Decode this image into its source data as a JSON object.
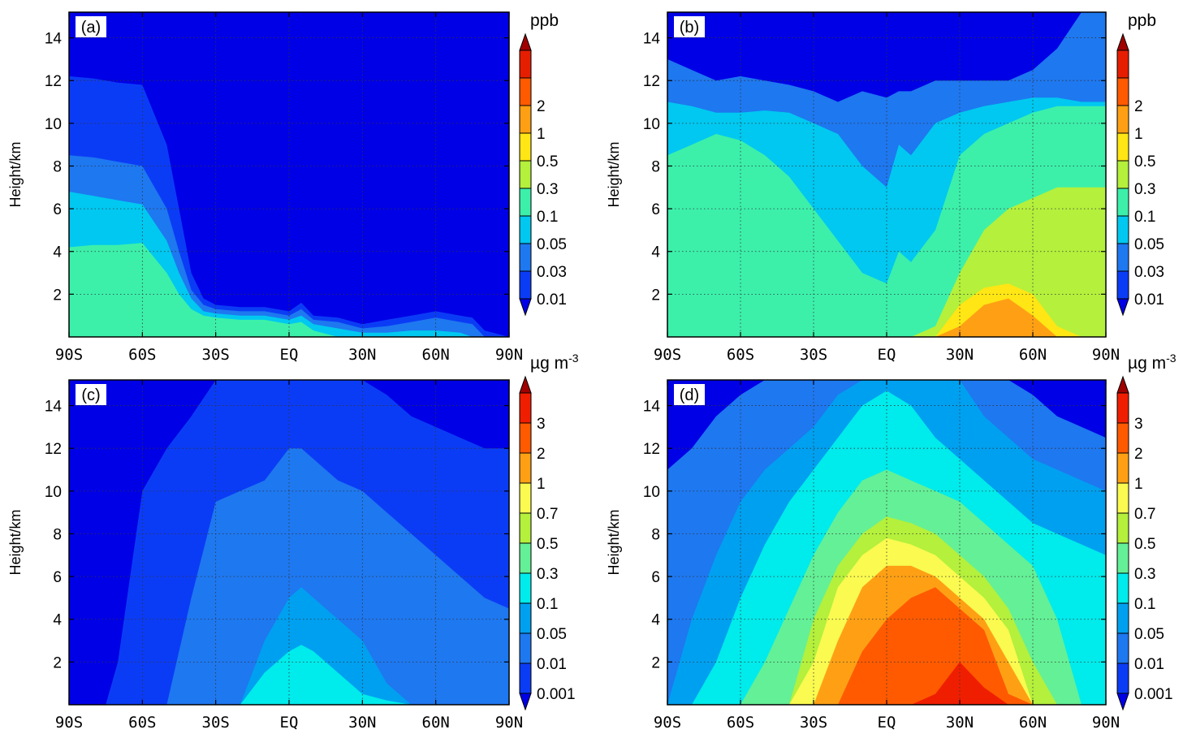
{
  "chart_data": [
    {
      "type": "heatmap",
      "panel_label": "(a)",
      "xlabel": "",
      "ylabel": "Height/km",
      "x_ticks": [
        "90S",
        "60S",
        "30S",
        "EQ",
        "30N",
        "60N",
        "90N"
      ],
      "y_ticks": [
        "2",
        "4",
        "6",
        "8",
        "10",
        "12",
        "14"
      ],
      "xlim": [
        -90,
        90
      ],
      "ylim": [
        0,
        15.2
      ],
      "grid": "dotted",
      "colorbar": {
        "unit": "ppb",
        "levels": [
          "0.01",
          "0.03",
          "0.05",
          "0.1",
          "0.3",
          "0.5",
          "1",
          "2"
        ],
        "colors": [
          "#0000e6",
          "#0b3cf5",
          "#1e78f0",
          "#00c8f0",
          "#3cf0aa",
          "#b4f03c",
          "#ffe614",
          "#ffa014",
          "#ff5a00",
          "#e61e00",
          "#a00000"
        ]
      },
      "contour_tops_km": {
        "x": [
          -90,
          -80,
          -70,
          -60,
          -50,
          -45,
          -40,
          -35,
          -30,
          -20,
          -10,
          0,
          5,
          10,
          20,
          30,
          40,
          50,
          60,
          70,
          75,
          80,
          90
        ],
        "0.01": [
          12.2,
          12.1,
          11.9,
          11.8,
          9.0,
          6.0,
          3.0,
          1.8,
          1.5,
          1.4,
          1.4,
          1.2,
          1.6,
          1.0,
          0.9,
          0.6,
          0.8,
          1.0,
          1.2,
          1.0,
          0.9,
          0.3,
          0.0
        ],
        "0.03": [
          8.5,
          8.4,
          8.2,
          8.0,
          6.0,
          4.0,
          2.2,
          1.5,
          1.3,
          1.2,
          1.2,
          1.0,
          1.3,
          0.8,
          0.7,
          0.4,
          0.5,
          0.7,
          0.9,
          0.7,
          0.6,
          0.0,
          0.0
        ],
        "0.05": [
          6.8,
          6.6,
          6.4,
          6.2,
          4.5,
          3.0,
          1.8,
          1.2,
          1.1,
          1.0,
          1.0,
          0.8,
          1.0,
          0.6,
          0.4,
          0.2,
          0.2,
          0.3,
          0.3,
          0.2,
          0.0,
          0.0,
          0.0
        ],
        "0.1": [
          4.2,
          4.3,
          4.3,
          4.4,
          3.0,
          2.0,
          1.3,
          1.0,
          0.9,
          0.8,
          0.8,
          0.6,
          0.7,
          0.3,
          0.0,
          0.0,
          0.0,
          0.0,
          0.0,
          0.0,
          0.0,
          0.0,
          0.0
        ]
      }
    },
    {
      "type": "heatmap",
      "panel_label": "(b)",
      "xlabel": "",
      "ylabel": "Height/km",
      "x_ticks": [
        "90S",
        "60S",
        "30S",
        "EQ",
        "30N",
        "60N",
        "90N"
      ],
      "y_ticks": [
        "2",
        "4",
        "6",
        "8",
        "10",
        "12",
        "14"
      ],
      "xlim": [
        -90,
        90
      ],
      "ylim": [
        0,
        15.2
      ],
      "grid": "dotted",
      "colorbar": {
        "unit": "ppb",
        "levels": [
          "0.01",
          "0.03",
          "0.05",
          "0.1",
          "0.3",
          "0.5",
          "1",
          "2"
        ],
        "colors": [
          "#0000e6",
          "#0b3cf5",
          "#1e78f0",
          "#00c8f0",
          "#3cf0aa",
          "#b4f03c",
          "#ffe614",
          "#ffa014",
          "#ff5a00",
          "#e61e00",
          "#a00000"
        ]
      },
      "contour_tops_km": {
        "x": [
          -90,
          -80,
          -70,
          -60,
          -50,
          -40,
          -30,
          -20,
          -10,
          0,
          5,
          10,
          20,
          30,
          40,
          50,
          60,
          70,
          80,
          90
        ],
        "0.03": [
          13.0,
          12.5,
          12.0,
          12.2,
          12.0,
          11.8,
          11.5,
          11.0,
          11.5,
          11.2,
          11.5,
          11.5,
          12.0,
          12.0,
          12.0,
          12.0,
          12.5,
          13.5,
          15.2,
          15.2
        ],
        "0.05": [
          11.0,
          10.8,
          10.5,
          10.5,
          10.6,
          10.5,
          10.0,
          9.5,
          8.0,
          7.0,
          9.0,
          8.5,
          10.0,
          10.5,
          10.8,
          11.0,
          11.2,
          11.2,
          11.0,
          11.0
        ],
        "0.1": [
          8.5,
          9.0,
          9.5,
          9.2,
          8.5,
          7.5,
          6.0,
          4.5,
          3.0,
          2.5,
          4.0,
          3.5,
          5.0,
          8.5,
          9.5,
          10.0,
          10.5,
          10.8,
          10.8,
          10.8
        ],
        "0.3": [
          0.0,
          0.0,
          0.0,
          0.0,
          0.0,
          0.0,
          0.0,
          0.0,
          0.0,
          0.0,
          0.0,
          0.0,
          0.5,
          3.0,
          5.0,
          6.0,
          6.5,
          7.0,
          7.0,
          7.0
        ],
        "0.5": [
          0.0,
          0.0,
          0.0,
          0.0,
          0.0,
          0.0,
          0.0,
          0.0,
          0.0,
          0.0,
          0.0,
          0.0,
          0.0,
          1.5,
          2.3,
          2.5,
          2.0,
          0.5,
          0.0,
          0.0
        ],
        "1": [
          0.0,
          0.0,
          0.0,
          0.0,
          0.0,
          0.0,
          0.0,
          0.0,
          0.0,
          0.0,
          0.0,
          0.0,
          0.0,
          0.5,
          1.5,
          1.8,
          1.0,
          0.0,
          0.0,
          0.0
        ]
      }
    },
    {
      "type": "heatmap",
      "panel_label": "(c)",
      "xlabel": "",
      "ylabel": "Height/km",
      "x_ticks": [
        "90S",
        "60S",
        "30S",
        "EQ",
        "30N",
        "60N",
        "90N"
      ],
      "y_ticks": [
        "2",
        "4",
        "6",
        "8",
        "10",
        "12",
        "14"
      ],
      "xlim": [
        -90,
        90
      ],
      "ylim": [
        0,
        15.2
      ],
      "grid": "dotted",
      "colorbar": {
        "unit": "µg m",
        "unit_superscript": "-3",
        "levels": [
          "0.001",
          "0.01",
          "0.05",
          "0.1",
          "0.3",
          "0.5",
          "0.7",
          "1",
          "2",
          "3"
        ],
        "colors": [
          "#0000e6",
          "#0b3cf5",
          "#1e78f0",
          "#00a0f0",
          "#00ebeb",
          "#64f096",
          "#b4f03c",
          "#fafa50",
          "#ffa014",
          "#ff5a00",
          "#f01e00",
          "#a00000"
        ]
      },
      "contour_tops_km": {
        "x": [
          -90,
          -80,
          -75,
          -70,
          -60,
          -50,
          -40,
          -30,
          -20,
          -10,
          0,
          5,
          10,
          20,
          30,
          40,
          50,
          60,
          70,
          80,
          90
        ],
        "0.001": [
          0.0,
          0.0,
          0.0,
          2.0,
          10.0,
          12.0,
          13.5,
          15.2,
          15.2,
          15.2,
          15.2,
          15.2,
          15.2,
          15.2,
          15.2,
          14.5,
          13.5,
          13.0,
          12.5,
          12.0,
          12.0
        ],
        "0.01": [
          0.0,
          0.0,
          0.0,
          0.0,
          0.0,
          0.0,
          5.0,
          9.5,
          10.0,
          10.5,
          12.0,
          12.0,
          11.5,
          10.5,
          10.0,
          9.0,
          8.0,
          7.0,
          6.0,
          5.0,
          4.5
        ],
        "0.05": [
          0.0,
          0.0,
          0.0,
          0.0,
          0.0,
          0.0,
          0.0,
          0.0,
          0.0,
          3.0,
          5.0,
          5.5,
          5.0,
          4.0,
          3.0,
          1.0,
          0.0,
          0.0,
          0.0,
          0.0,
          0.0
        ],
        "0.1": [
          0.0,
          0.0,
          0.0,
          0.0,
          0.0,
          0.0,
          0.0,
          0.0,
          0.0,
          1.5,
          2.5,
          2.8,
          2.5,
          1.5,
          0.5,
          0.2,
          0.0,
          0.0,
          0.0,
          0.0,
          0.0
        ]
      }
    },
    {
      "type": "heatmap",
      "panel_label": "(d)",
      "xlabel": "",
      "ylabel": "Height/km",
      "x_ticks": [
        "90S",
        "60S",
        "30S",
        "EQ",
        "30N",
        "60N",
        "90N"
      ],
      "y_ticks": [
        "2",
        "4",
        "6",
        "8",
        "10",
        "12",
        "14"
      ],
      "xlim": [
        -90,
        90
      ],
      "ylim": [
        0,
        15.2
      ],
      "grid": "dotted",
      "colorbar": {
        "unit": "µg m",
        "unit_superscript": "-3",
        "levels": [
          "0.001",
          "0.01",
          "0.05",
          "0.1",
          "0.3",
          "0.5",
          "0.7",
          "1",
          "2",
          "3"
        ],
        "colors": [
          "#0000e6",
          "#0b3cf5",
          "#1e78f0",
          "#00a0f0",
          "#00ebeb",
          "#64f096",
          "#b4f03c",
          "#fafa50",
          "#ffa014",
          "#ff5a00",
          "#f01e00",
          "#a00000"
        ]
      },
      "contour_tops_km": {
        "x": [
          -90,
          -80,
          -70,
          -60,
          -50,
          -40,
          -30,
          -20,
          -10,
          0,
          10,
          20,
          30,
          40,
          50,
          60,
          70,
          80,
          90
        ],
        "0.01": [
          11.0,
          12.0,
          13.5,
          14.5,
          15.2,
          15.2,
          15.2,
          15.2,
          15.2,
          15.2,
          15.2,
          15.2,
          15.2,
          15.2,
          15.2,
          14.5,
          13.5,
          13.0,
          12.5
        ],
        "0.05": [
          0.0,
          4.0,
          7.0,
          9.5,
          11.0,
          12.0,
          13.0,
          14.5,
          15.2,
          15.2,
          15.2,
          15.2,
          15.2,
          13.5,
          12.5,
          11.5,
          11.0,
          10.5,
          10.0
        ],
        "0.1": [
          0.0,
          0.0,
          2.0,
          5.0,
          7.5,
          9.5,
          11.0,
          12.5,
          14.0,
          14.7,
          14.0,
          12.5,
          11.5,
          10.5,
          9.5,
          8.5,
          8.0,
          7.5,
          7.0
        ],
        "0.3": [
          0.0,
          0.0,
          0.0,
          0.0,
          2.0,
          4.5,
          7.0,
          9.0,
          10.5,
          11.0,
          10.5,
          10.0,
          9.5,
          8.5,
          7.5,
          6.5,
          4.0,
          0.0,
          0.0
        ],
        "0.5": [
          0.0,
          0.0,
          0.0,
          0.0,
          0.0,
          0.0,
          4.0,
          6.5,
          8.0,
          8.8,
          8.5,
          8.0,
          7.0,
          6.0,
          4.5,
          2.0,
          0.0,
          0.0,
          0.0
        ],
        "0.7": [
          0.0,
          0.0,
          0.0,
          0.0,
          0.0,
          0.0,
          2.0,
          5.5,
          7.0,
          7.8,
          7.5,
          7.0,
          6.0,
          5.0,
          3.5,
          0.0,
          0.0,
          0.0,
          0.0
        ],
        "1": [
          0.0,
          0.0,
          0.0,
          0.0,
          0.0,
          0.0,
          0.0,
          3.0,
          5.5,
          6.5,
          6.5,
          6.0,
          5.0,
          4.0,
          2.0,
          0.0,
          0.0,
          0.0,
          0.0
        ],
        "2": [
          0.0,
          0.0,
          0.0,
          0.0,
          0.0,
          0.0,
          0.0,
          0.0,
          2.5,
          4.0,
          5.0,
          5.5,
          4.5,
          3.5,
          0.5,
          0.0,
          0.0,
          0.0,
          0.0
        ],
        "3": [
          0.0,
          0.0,
          0.0,
          0.0,
          0.0,
          0.0,
          0.0,
          0.0,
          0.0,
          0.0,
          0.0,
          0.5,
          2.0,
          0.8,
          0.0,
          0.0,
          0.0,
          0.0,
          0.0
        ]
      }
    }
  ]
}
